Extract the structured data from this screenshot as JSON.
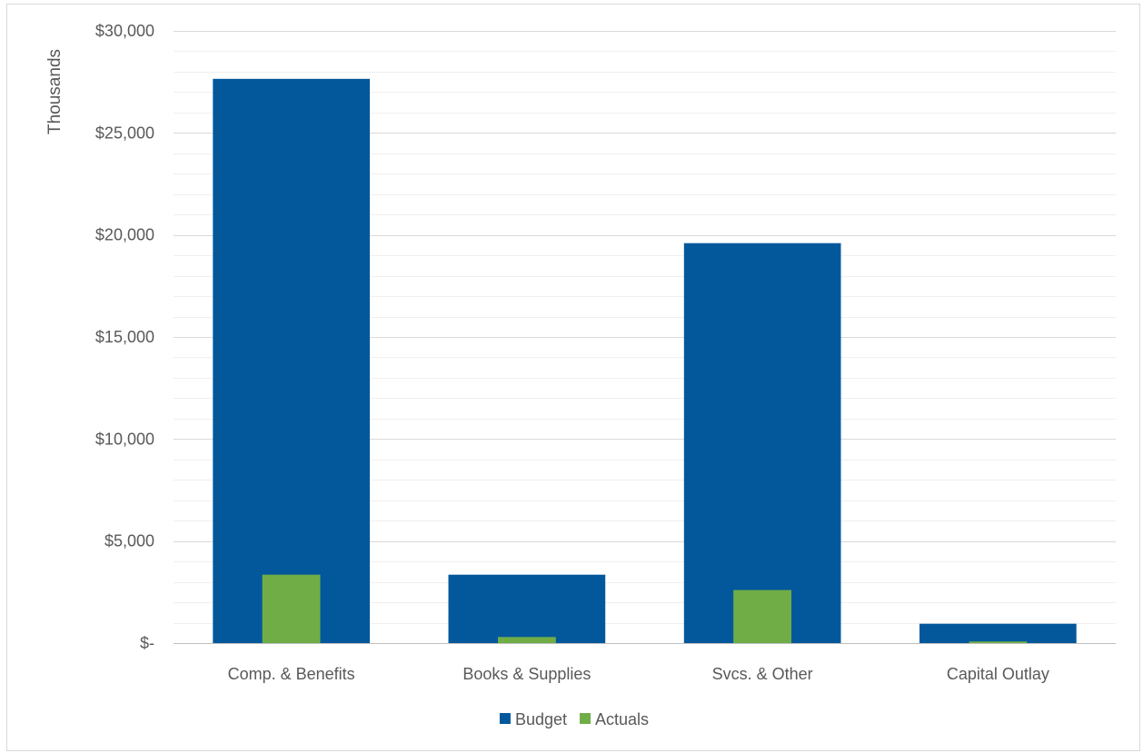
{
  "chart_data": {
    "type": "bar",
    "ylabel": "Thousands",
    "ylim": [
      0,
      30000
    ],
    "major_ticks": [
      0,
      5000,
      10000,
      15000,
      20000,
      25000,
      30000
    ],
    "tick_labels": [
      "$-",
      "$5,000",
      "$10,000",
      "$15,000",
      "$20,000",
      "$25,000",
      "$30,000"
    ],
    "minor_step": 1000,
    "grid": true,
    "legend_position": "bottom",
    "overlapping_bars": true,
    "categories": [
      "Comp. & Benefits",
      "Books & Supplies",
      "Svcs. & Other",
      "Capital Outlay"
    ],
    "series": [
      {
        "name": "Budget",
        "values": [
          27650,
          3350,
          19600,
          950
        ],
        "color": "#03589c"
      },
      {
        "name": "Actuals",
        "values": [
          3350,
          300,
          2600,
          80
        ],
        "color": "#70ad47"
      }
    ]
  },
  "colors": {
    "gridline": "#d9d9d9",
    "minor_gridline": "#efefef",
    "axis_line": "#bfbfbf",
    "text": "#595959"
  }
}
